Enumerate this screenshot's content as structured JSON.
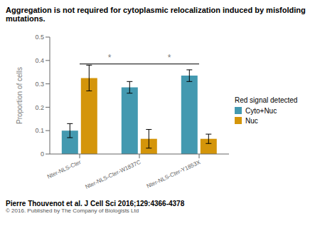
{
  "chart_data": {
    "type": "bar",
    "title": "Aggregation is not required for cytoplasmic relocalization induced by misfolding mutations.",
    "y_label": "Proportion of cells",
    "categories": [
      "Nter-NLS-Cter",
      "Nter-NLS-Cter-W1837C",
      "Nter-NLS-Cter-Y1853X"
    ],
    "series": [
      {
        "name": "Cyto+Nuc",
        "color": "#4399b0",
        "values": [
          0.1,
          0.285,
          0.335
        ],
        "errors": [
          0.03,
          0.025,
          0.025
        ]
      },
      {
        "name": "Nuc",
        "color": "#d4950a",
        "values": [
          0.325,
          0.065,
          0.065
        ],
        "errors": [
          0.055,
          0.04,
          0.02
        ]
      }
    ],
    "ylim": [
      0,
      0.5
    ],
    "yticks": [
      0.0,
      0.1,
      0.2,
      0.3,
      0.4,
      0.5
    ],
    "grid": false,
    "legend": "right",
    "legend_title": "Red signal detected",
    "annotations": [
      {
        "text": "*",
        "from": "Nter-NLS-Cter",
        "to": "Nter-NLS-Cter-W1837C",
        "y": 0.385
      },
      {
        "text": "*",
        "from": "Nter-NLS-Cter-W1837C",
        "to": "Nter-NLS-Cter-Y1853X",
        "y": 0.385
      },
      {
        "text": "Pierre Thouvenot et al. J Cell Sci 2016;129:4366-4378"
      },
      {
        "text": "© 2016. Published by The Company of Biologists Ltd"
      }
    ]
  }
}
